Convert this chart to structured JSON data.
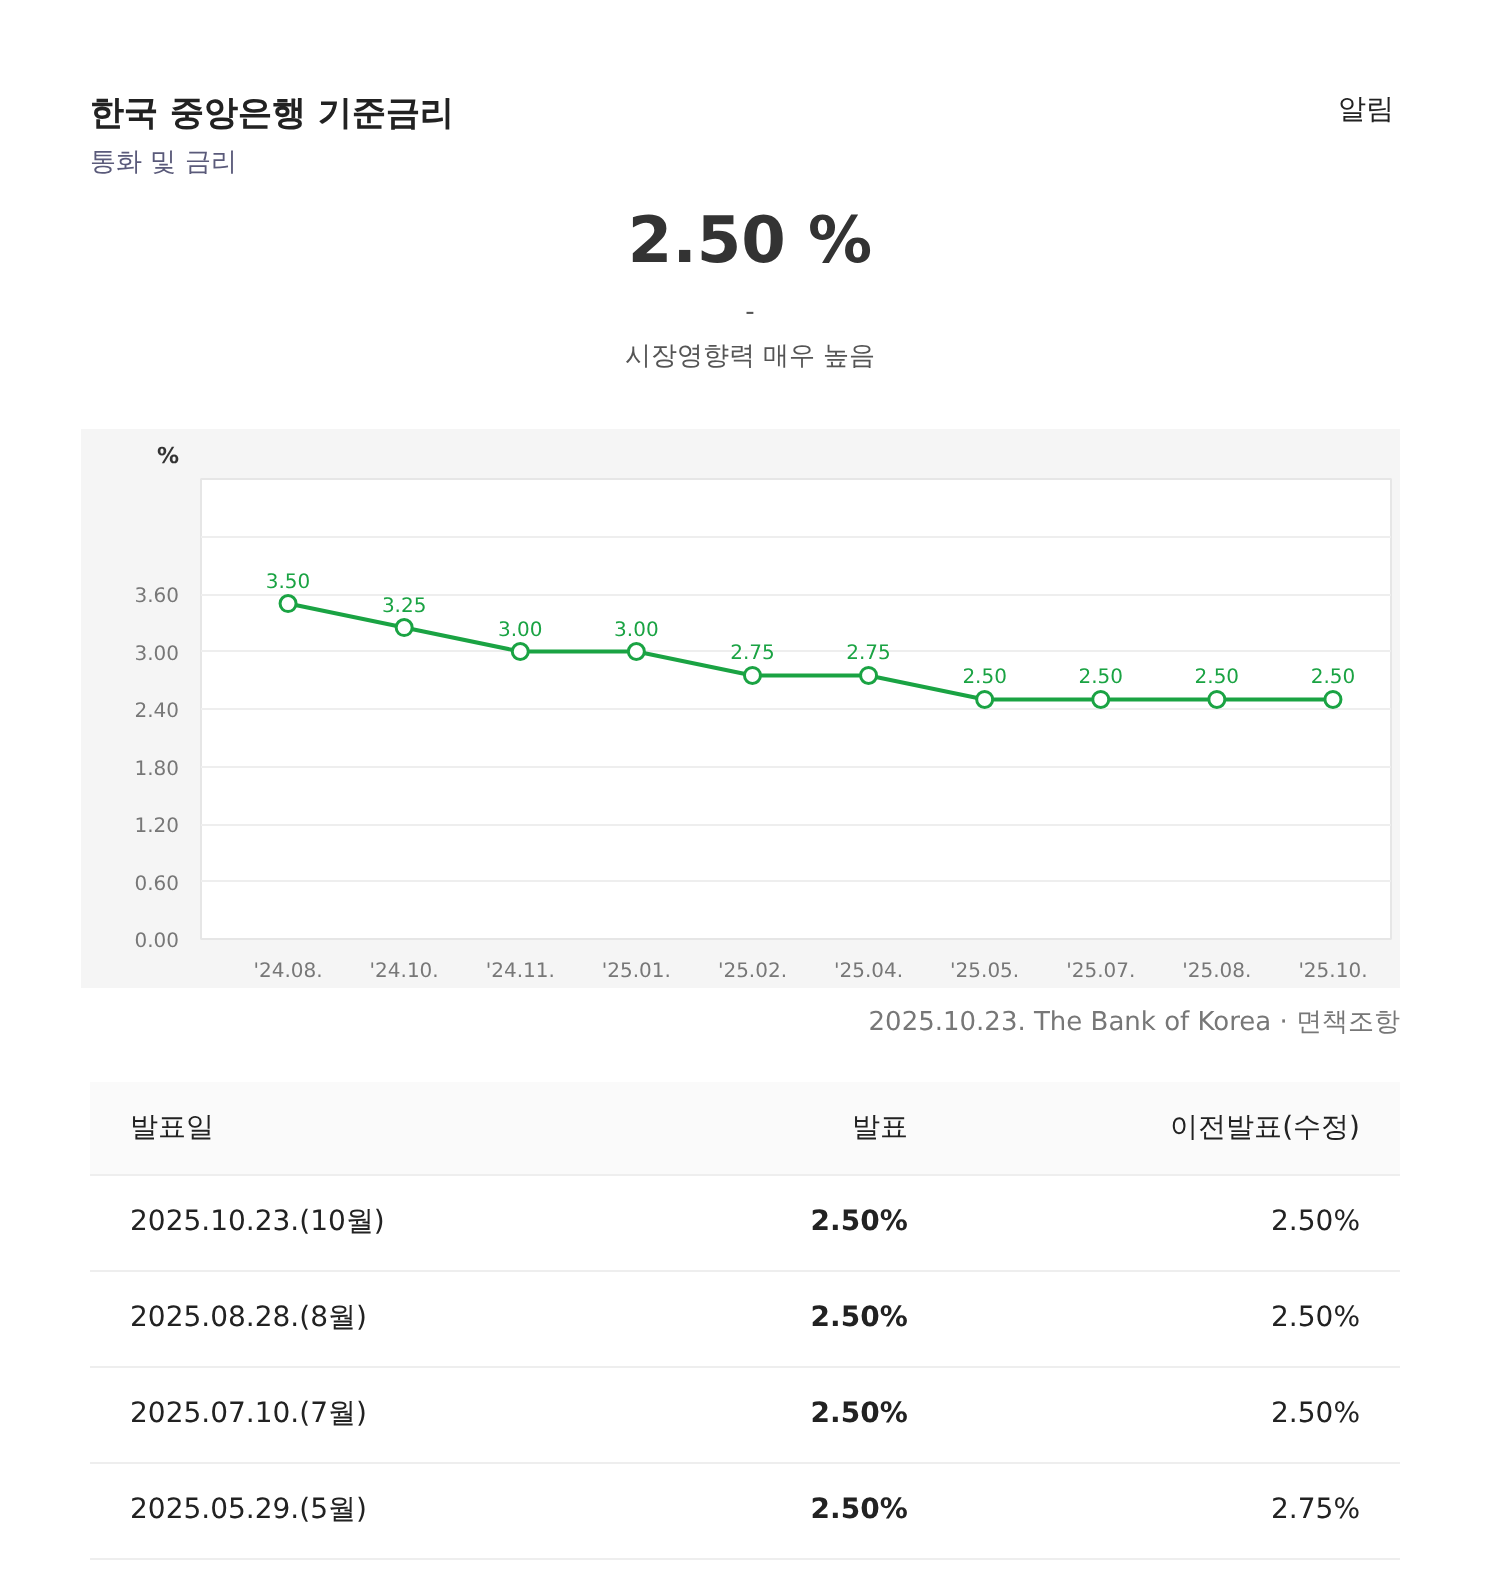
{
  "chart_data": [
    {
      "type": "line",
      "title": "한국 중앙은행 기준금리",
      "subtitle": "통화 및 금리",
      "ylabel": "%",
      "annotations": [
        "2.50 %",
        "-",
        "시장영향력 매우 높음",
        "알림",
        "2025.10.23. The Bank of Korea · 면책조항"
      ],
      "categories": [
        "'24.08.",
        "'24.10.",
        "'24.11.",
        "'25.01.",
        "'25.02.",
        "'25.04.",
        "'25.05.",
        "'25.07.",
        "'25.08.",
        "'25.10."
      ],
      "series": [
        {
          "color": "#1aa343",
          "values": [
            3.5,
            3.25,
            3.0,
            3.0,
            2.75,
            2.75,
            2.5,
            2.5,
            2.5,
            2.5
          ],
          "value_labels": [
            "3.50",
            "3.25",
            "3.00",
            "3.00",
            "2.75",
            "2.75",
            "2.50",
            "2.50",
            "2.50",
            "2.50"
          ]
        }
      ],
      "ylim": [
        0,
        4.8
      ],
      "yticks": [
        {
          "value": 0,
          "label": "0.00"
        },
        {
          "value": 0.6,
          "label": "0.60"
        },
        {
          "value": 1.2,
          "label": "1.20"
        },
        {
          "value": 1.8,
          "label": "1.80"
        },
        {
          "value": 2.4,
          "label": "2.40"
        },
        {
          "value": 3.0,
          "label": "3.00"
        },
        {
          "value": 3.6,
          "label": "3.60"
        },
        {
          "value": 4.2,
          "label": null
        },
        {
          "value": 4.8,
          "label": null
        }
      ],
      "grid": "y",
      "marker": "circle",
      "line_style": "solid"
    },
    {
      "type": "other",
      "annotations": [
        "발표일",
        "발표",
        "이전발표(수정)",
        "2025.10.23.(10월)",
        "2.50%",
        "2.50%",
        "2025.08.28.(8월)",
        "2.50%",
        "2.50%",
        "2025.07.10.(7월)",
        "2.50%",
        "2.50%",
        "2025.05.29.(5월)",
        "2.50%",
        "2.75%"
      ]
    }
  ]
}
